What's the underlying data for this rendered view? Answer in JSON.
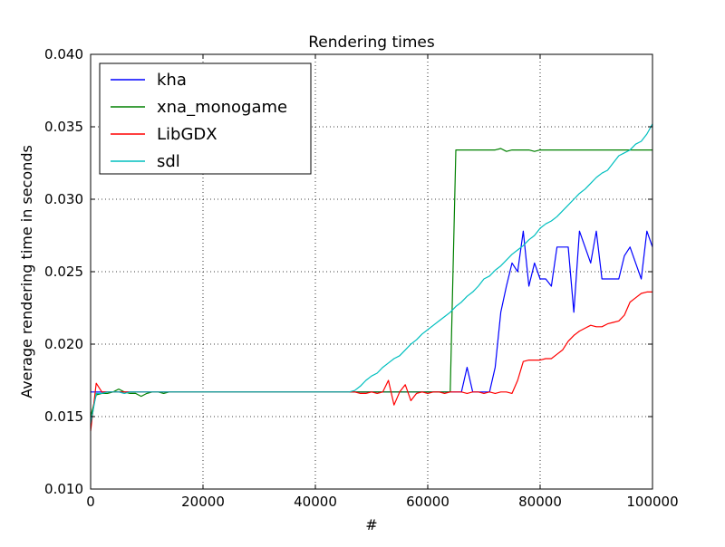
{
  "chart_data": {
    "type": "line",
    "title": "Rendering times",
    "xlabel": "#",
    "ylabel": "Average rendering time in seconds",
    "xlim": [
      0,
      100000
    ],
    "ylim": [
      0.01,
      0.04
    ],
    "x_ticks": [
      0,
      20000,
      40000,
      60000,
      80000,
      100000
    ],
    "x_tick_labels": [
      "0",
      "20000",
      "40000",
      "60000",
      "80000",
      "100000"
    ],
    "y_ticks": [
      0.01,
      0.015,
      0.02,
      0.025,
      0.03,
      0.035,
      0.04
    ],
    "y_tick_labels": [
      "0.010",
      "0.015",
      "0.020",
      "0.025",
      "0.030",
      "0.035",
      "0.040"
    ],
    "grid": true,
    "legend_position": "upper-left",
    "x": [
      0,
      1000,
      2000,
      3000,
      4000,
      5000,
      6000,
      7000,
      8000,
      9000,
      10000,
      11000,
      12000,
      13000,
      14000,
      15000,
      16000,
      17000,
      18000,
      19000,
      20000,
      21000,
      22000,
      23000,
      24000,
      25000,
      26000,
      27000,
      28000,
      29000,
      30000,
      31000,
      32000,
      33000,
      34000,
      35000,
      36000,
      37000,
      38000,
      39000,
      40000,
      41000,
      42000,
      43000,
      44000,
      45000,
      46000,
      47000,
      48000,
      49000,
      50000,
      51000,
      52000,
      53000,
      54000,
      55000,
      56000,
      57000,
      58000,
      59000,
      60000,
      61000,
      62000,
      63000,
      64000,
      65000,
      66000,
      67000,
      68000,
      69000,
      70000,
      71000,
      72000,
      73000,
      74000,
      75000,
      76000,
      77000,
      78000,
      79000,
      80000,
      81000,
      82000,
      83000,
      84000,
      85000,
      86000,
      87000,
      88000,
      89000,
      90000,
      91000,
      92000,
      93000,
      94000,
      95000,
      96000,
      97000,
      98000,
      99000,
      100000
    ],
    "series": [
      {
        "name": "kha",
        "color": "#0000ff",
        "values": [
          0.0167,
          0.0167,
          0.0167,
          0.0167,
          0.0167,
          0.0167,
          0.0167,
          0.0167,
          0.0167,
          0.0167,
          0.0167,
          0.0167,
          0.0167,
          0.0167,
          0.0167,
          0.0167,
          0.0167,
          0.0167,
          0.0167,
          0.0167,
          0.0167,
          0.0167,
          0.0167,
          0.0167,
          0.0167,
          0.0167,
          0.0167,
          0.0167,
          0.0167,
          0.0167,
          0.0167,
          0.0167,
          0.0167,
          0.0167,
          0.0167,
          0.0167,
          0.0167,
          0.0167,
          0.0167,
          0.0167,
          0.0167,
          0.0167,
          0.0167,
          0.0167,
          0.0167,
          0.0167,
          0.0167,
          0.0167,
          0.0167,
          0.0167,
          0.0167,
          0.0167,
          0.0167,
          0.0167,
          0.0167,
          0.0167,
          0.0167,
          0.0167,
          0.0167,
          0.0167,
          0.0167,
          0.0167,
          0.0167,
          0.0167,
          0.0167,
          0.0167,
          0.0167,
          0.0184,
          0.0167,
          0.0167,
          0.0167,
          0.0167,
          0.0184,
          0.0222,
          0.024,
          0.0256,
          0.025,
          0.0278,
          0.024,
          0.0256,
          0.0245,
          0.0245,
          0.024,
          0.0267,
          0.0267,
          0.0267,
          0.0222,
          0.0278,
          0.0267,
          0.0256,
          0.0278,
          0.0245,
          0.0245,
          0.0245,
          0.0245,
          0.0261,
          0.0267,
          0.0256,
          0.0245,
          0.0278,
          0.0267
        ]
      },
      {
        "name": "xna_monogame",
        "color": "#008000",
        "values": [
          0.015,
          0.0165,
          0.0166,
          0.0166,
          0.0167,
          0.0169,
          0.0167,
          0.0166,
          0.0166,
          0.0164,
          0.0166,
          0.0167,
          0.0167,
          0.0166,
          0.0167,
          0.0167,
          0.0167,
          0.0167,
          0.0167,
          0.0167,
          0.0167,
          0.0167,
          0.0167,
          0.0167,
          0.0167,
          0.0167,
          0.0167,
          0.0167,
          0.0167,
          0.0167,
          0.0167,
          0.0167,
          0.0167,
          0.0167,
          0.0167,
          0.0167,
          0.0167,
          0.0167,
          0.0167,
          0.0167,
          0.0167,
          0.0167,
          0.0167,
          0.0167,
          0.0167,
          0.0167,
          0.0167,
          0.0167,
          0.0167,
          0.0167,
          0.0167,
          0.0167,
          0.0167,
          0.0167,
          0.0167,
          0.0167,
          0.0167,
          0.0167,
          0.0167,
          0.0167,
          0.0167,
          0.0167,
          0.0167,
          0.0167,
          0.0167,
          0.0334,
          0.0334,
          0.0334,
          0.0334,
          0.0334,
          0.0334,
          0.0334,
          0.0334,
          0.0335,
          0.0333,
          0.0334,
          0.0334,
          0.0334,
          0.0334,
          0.0333,
          0.0334,
          0.0334,
          0.0334,
          0.0334,
          0.0334,
          0.0334,
          0.0334,
          0.0334,
          0.0334,
          0.0334,
          0.0334,
          0.0334,
          0.0334,
          0.0334,
          0.0334,
          0.0334,
          0.0334,
          0.0334,
          0.0334,
          0.0334,
          0.0334
        ]
      },
      {
        "name": "LibGDX",
        "color": "#ff0000",
        "values": [
          0.014,
          0.0173,
          0.0167,
          0.0167,
          0.0167,
          0.0167,
          0.0167,
          0.0167,
          0.0167,
          0.0167,
          0.0167,
          0.0167,
          0.0167,
          0.0167,
          0.0167,
          0.0167,
          0.0167,
          0.0167,
          0.0167,
          0.0167,
          0.0167,
          0.0167,
          0.0167,
          0.0167,
          0.0167,
          0.0167,
          0.0167,
          0.0167,
          0.0167,
          0.0167,
          0.0167,
          0.0167,
          0.0167,
          0.0167,
          0.0167,
          0.0167,
          0.0167,
          0.0167,
          0.0167,
          0.0167,
          0.0167,
          0.0167,
          0.0167,
          0.0167,
          0.0167,
          0.0167,
          0.0167,
          0.0167,
          0.0166,
          0.0166,
          0.0167,
          0.0166,
          0.0167,
          0.0175,
          0.0158,
          0.0167,
          0.0172,
          0.0161,
          0.0166,
          0.0167,
          0.0166,
          0.0167,
          0.0167,
          0.0166,
          0.0167,
          0.0167,
          0.0167,
          0.0166,
          0.0167,
          0.0167,
          0.0166,
          0.0167,
          0.0166,
          0.0167,
          0.0167,
          0.0166,
          0.0175,
          0.0188,
          0.0189,
          0.0189,
          0.0189,
          0.019,
          0.019,
          0.0193,
          0.0196,
          0.0202,
          0.0206,
          0.0209,
          0.0211,
          0.0213,
          0.0212,
          0.0212,
          0.0214,
          0.0215,
          0.0216,
          0.022,
          0.0229,
          0.0232,
          0.0235,
          0.0236,
          0.0236
        ]
      },
      {
        "name": "sdl",
        "color": "#00bfbf",
        "values": [
          0.0145,
          0.0166,
          0.0166,
          0.0167,
          0.0167,
          0.0167,
          0.0166,
          0.0167,
          0.0167,
          0.0167,
          0.0167,
          0.0167,
          0.0167,
          0.0167,
          0.0167,
          0.0167,
          0.0167,
          0.0167,
          0.0167,
          0.0167,
          0.0167,
          0.0167,
          0.0167,
          0.0167,
          0.0167,
          0.0167,
          0.0167,
          0.0167,
          0.0167,
          0.0167,
          0.0167,
          0.0167,
          0.0167,
          0.0167,
          0.0167,
          0.0167,
          0.0167,
          0.0167,
          0.0167,
          0.0167,
          0.0167,
          0.0167,
          0.0167,
          0.0167,
          0.0167,
          0.0167,
          0.0167,
          0.0168,
          0.0171,
          0.0175,
          0.0178,
          0.018,
          0.0184,
          0.0187,
          0.019,
          0.0192,
          0.0196,
          0.02,
          0.0203,
          0.0207,
          0.021,
          0.0213,
          0.0216,
          0.0219,
          0.0222,
          0.0226,
          0.0229,
          0.0233,
          0.0236,
          0.024,
          0.0245,
          0.0247,
          0.0251,
          0.0254,
          0.0258,
          0.0262,
          0.0265,
          0.0268,
          0.0272,
          0.0275,
          0.028,
          0.0283,
          0.0285,
          0.0288,
          0.0292,
          0.0296,
          0.03,
          0.0304,
          0.0307,
          0.0311,
          0.0315,
          0.0318,
          0.032,
          0.0325,
          0.033,
          0.0332,
          0.0334,
          0.0338,
          0.034,
          0.0345,
          0.0352
        ]
      }
    ]
  }
}
